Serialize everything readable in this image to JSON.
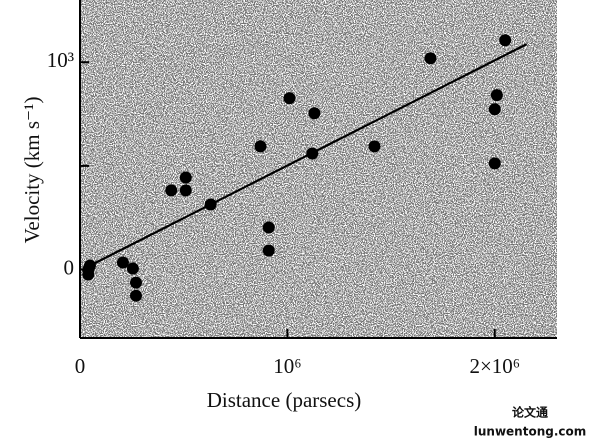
{
  "chart_data": {
    "type": "scatter",
    "x_label": "Distance (parsecs)",
    "y_label": "Velocity (km s⁻¹)",
    "x": [
      40000,
      40000,
      48000,
      207000,
      255000,
      270000,
      270000,
      440000,
      510000,
      510000,
      630000,
      870000,
      910000,
      910000,
      1010000,
      1130000,
      1120000,
      1420000,
      1690000,
      2010000,
      2000000,
      2000000,
      2050000
    ],
    "values": [
      -24,
      0,
      19,
      34,
      5,
      -63,
      -126,
      382,
      444,
      382,
      314,
      594,
      203,
      92,
      826,
      754,
      560,
      594,
      1019,
      841,
      773,
      512,
      1106
    ],
    "color": "#000000",
    "fit_line": {
      "x": [
        48000,
        2154000
      ],
      "y": [
        19,
        1087
      ]
    },
    "xlim": [
      0,
      2300000
    ],
    "ylim": [
      -330,
      1300
    ],
    "xticks": [
      0,
      {
        "value": 1000000,
        "label": "10⁶"
      },
      {
        "value": 2000000,
        "label": "2×10⁶"
      }
    ],
    "yticks": [
      0,
      500,
      {
        "value": 1000,
        "label": "10³"
      }
    ],
    "watermark": [
      "论文通",
      "lunwentong.com"
    ]
  }
}
